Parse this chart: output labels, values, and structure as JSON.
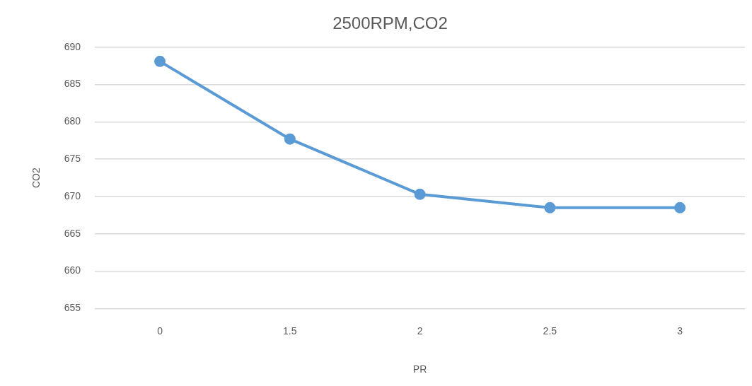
{
  "chart_data": {
    "type": "line",
    "title": "2500RPM,CO2",
    "xlabel": "PR",
    "ylabel": "CO2",
    "categories": [
      "0",
      "1.5",
      "2",
      "2.5",
      "3"
    ],
    "series": [
      {
        "color": "#5b9bd5",
        "values": [
          688.1,
          677.7,
          670.3,
          668.5,
          668.5
        ]
      }
    ],
    "ylim": [
      655,
      690
    ],
    "yticks": [
      655,
      660,
      665,
      670,
      675,
      680,
      685,
      690
    ],
    "grid": "y",
    "legend": false,
    "marker": "circle",
    "line_style": "solid"
  }
}
